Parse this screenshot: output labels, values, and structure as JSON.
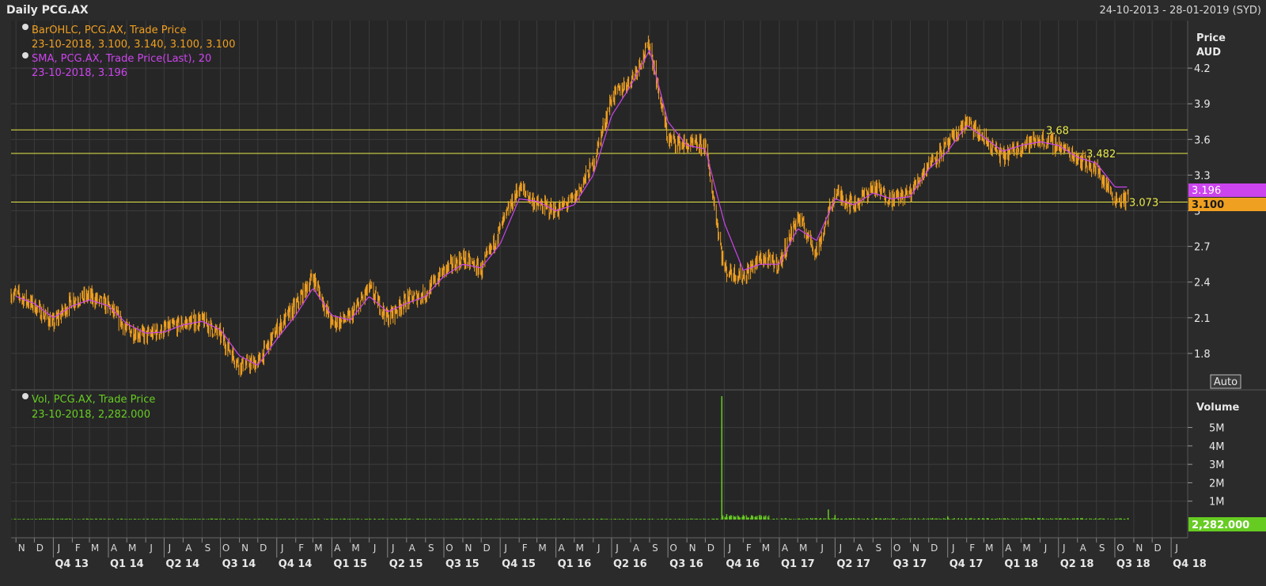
{
  "header": {
    "title": "Daily PCG.AX",
    "date_range": "24-10-2013 - 28-01-2019 (SYD)"
  },
  "price_panel": {
    "axis_title": "Price",
    "axis_unit": "AUD",
    "auto_label": "Auto",
    "legend": [
      {
        "icon": "info-icon",
        "line1": "BarOHLC, PCG.AX, Trade Price",
        "line2": "23-10-2018, 3.100, 3.140, 3.100, 3.100",
        "color": "#f0a020"
      },
      {
        "icon": "info-icon",
        "line1": "SMA, PCG.AX, Trade Price(Last),  20",
        "line2": "23-10-2018, 3.196",
        "color": "#cc44ee"
      }
    ],
    "last_price_tag": "3.100",
    "sma_tag": "3.196",
    "hlines": [
      {
        "value": 3.68,
        "label": "3.68"
      },
      {
        "value": 3.482,
        "label": "3.482"
      },
      {
        "value": 3.073,
        "label": "3.073"
      }
    ]
  },
  "volume_panel": {
    "axis_title": "Volume",
    "legend": [
      {
        "icon": "info-icon",
        "line1": "Vol, PCG.AX, Trade Price",
        "line2": "23-10-2018, 2,282.000",
        "color": "#66cc22"
      }
    ],
    "last_volume_tag": "2,282.000"
  },
  "x_axis": {
    "months": [
      "N",
      "D",
      "J",
      "F",
      "M",
      "A",
      "M",
      "J",
      "J",
      "A",
      "S",
      "O",
      "N",
      "D",
      "J",
      "F",
      "M",
      "A",
      "M",
      "J",
      "J",
      "A",
      "S",
      "O",
      "N",
      "D",
      "J",
      "F",
      "M",
      "A",
      "M",
      "J",
      "J",
      "A",
      "S",
      "O",
      "N",
      "D",
      "J",
      "F",
      "M",
      "A",
      "M",
      "J",
      "J",
      "A",
      "S",
      "O",
      "N",
      "D",
      "J",
      "F",
      "M",
      "A",
      "M",
      "J",
      "J",
      "A",
      "S",
      "O",
      "N",
      "D",
      "J"
    ],
    "quarters": [
      "Q4 13",
      "Q1 14",
      "Q2 14",
      "Q3 14",
      "Q4 14",
      "Q1 15",
      "Q2 15",
      "Q3 15",
      "Q4 15",
      "Q1 16",
      "Q2 16",
      "Q3 16",
      "Q4 16",
      "Q1 17",
      "Q2 17",
      "Q3 17",
      "Q4 17",
      "Q1 18",
      "Q2 18",
      "Q3 18",
      "Q4 18"
    ]
  },
  "colors": {
    "background": "#2b2b2b",
    "grid": "#3c3c3c",
    "ohlc": "#f0a020",
    "sma": "#cc44ee",
    "volume": "#66cc22",
    "hline": "#e8e84a",
    "last_tag_bg": "#f0a020",
    "sma_tag_bg": "#cc44ee",
    "vol_tag_bg": "#66cc22"
  },
  "chart_data": [
    {
      "type": "line",
      "title": "Daily PCG.AX",
      "ylabel": "Price AUD",
      "ylim": [
        1.5,
        4.6
      ],
      "y_ticks": [
        1.8,
        2.1,
        2.4,
        2.7,
        3,
        3.3,
        3.6,
        3.9,
        4.2
      ],
      "x_range": [
        "2013-10-24",
        "2019-01-28"
      ],
      "series": [
        {
          "name": "BarOHLC, PCG.AX, Trade Price",
          "style": "ohlc",
          "x": [
            "2013-11-01",
            "2013-12-01",
            "2014-01-01",
            "2014-02-01",
            "2014-03-01",
            "2014-04-01",
            "2014-05-01",
            "2014-06-01",
            "2014-07-01",
            "2014-08-01",
            "2014-09-01",
            "2014-10-01",
            "2014-11-01",
            "2014-12-01",
            "2015-01-01",
            "2015-02-01",
            "2015-03-01",
            "2015-04-01",
            "2015-05-01",
            "2015-06-01",
            "2015-07-01",
            "2015-08-01",
            "2015-09-01",
            "2015-10-01",
            "2015-11-01",
            "2015-12-01",
            "2016-01-01",
            "2016-02-01",
            "2016-03-01",
            "2016-04-01",
            "2016-05-01",
            "2016-06-01",
            "2016-07-01",
            "2016-08-01",
            "2016-09-01",
            "2016-10-01",
            "2016-11-01",
            "2016-12-01",
            "2017-01-01",
            "2017-02-01",
            "2017-03-01",
            "2017-04-01",
            "2017-05-01",
            "2017-06-01",
            "2017-07-01",
            "2017-08-01",
            "2017-09-01",
            "2017-10-01",
            "2017-11-01",
            "2017-12-01",
            "2018-01-01",
            "2018-02-01",
            "2018-03-01",
            "2018-04-01",
            "2018-05-01",
            "2018-06-01",
            "2018-07-01",
            "2018-08-01",
            "2018-09-01",
            "2018-10-01"
          ],
          "values": [
            2.3,
            2.2,
            2.05,
            2.25,
            2.28,
            2.2,
            2.0,
            1.95,
            2.0,
            2.05,
            2.08,
            1.95,
            1.7,
            1.72,
            2.0,
            2.2,
            2.45,
            2.05,
            2.1,
            2.35,
            2.1,
            2.25,
            2.3,
            2.5,
            2.6,
            2.5,
            2.85,
            3.2,
            3.05,
            3.0,
            3.1,
            3.4,
            3.95,
            4.1,
            4.4,
            3.6,
            3.55,
            3.55,
            2.5,
            2.45,
            2.6,
            2.55,
            2.95,
            2.65,
            3.15,
            3.05,
            3.2,
            3.1,
            3.15,
            3.4,
            3.55,
            3.75,
            3.6,
            3.45,
            3.55,
            3.6,
            3.55,
            3.45,
            3.35,
            3.1
          ]
        },
        {
          "name": "SMA, PCG.AX, Trade Price(Last),  20",
          "style": "line",
          "x": [
            "2013-11-01",
            "2013-12-01",
            "2014-01-01",
            "2014-02-01",
            "2014-03-01",
            "2014-04-01",
            "2014-05-01",
            "2014-06-01",
            "2014-07-01",
            "2014-08-01",
            "2014-09-01",
            "2014-10-01",
            "2014-11-01",
            "2014-12-01",
            "2015-01-01",
            "2015-02-01",
            "2015-03-01",
            "2015-04-01",
            "2015-05-01",
            "2015-06-01",
            "2015-07-01",
            "2015-08-01",
            "2015-09-01",
            "2015-10-01",
            "2015-11-01",
            "2015-12-01",
            "2016-01-01",
            "2016-02-01",
            "2016-03-01",
            "2016-04-01",
            "2016-05-01",
            "2016-06-01",
            "2016-07-01",
            "2016-08-01",
            "2016-09-01",
            "2016-10-01",
            "2016-11-01",
            "2016-12-01",
            "2017-01-01",
            "2017-02-01",
            "2017-03-01",
            "2017-04-01",
            "2017-05-01",
            "2017-06-01",
            "2017-07-01",
            "2017-08-01",
            "2017-09-01",
            "2017-10-01",
            "2017-11-01",
            "2017-12-01",
            "2018-01-01",
            "2018-02-01",
            "2018-03-01",
            "2018-04-01",
            "2018-05-01",
            "2018-06-01",
            "2018-07-01",
            "2018-08-01",
            "2018-09-01",
            "2018-10-01"
          ],
          "values": [
            2.28,
            2.22,
            2.1,
            2.2,
            2.25,
            2.2,
            2.05,
            1.97,
            1.98,
            2.04,
            2.07,
            2.0,
            1.78,
            1.7,
            1.92,
            2.12,
            2.35,
            2.12,
            2.08,
            2.28,
            2.15,
            2.22,
            2.28,
            2.45,
            2.55,
            2.52,
            2.72,
            3.1,
            3.08,
            3.0,
            3.05,
            3.3,
            3.8,
            4.05,
            4.35,
            3.75,
            3.55,
            3.52,
            2.9,
            2.5,
            2.55,
            2.55,
            2.85,
            2.75,
            3.1,
            3.05,
            3.15,
            3.1,
            3.12,
            3.35,
            3.5,
            3.72,
            3.62,
            3.5,
            3.55,
            3.58,
            3.55,
            3.45,
            3.4,
            3.2
          ]
        }
      ]
    },
    {
      "type": "bar",
      "title": "",
      "ylabel": "Volume",
      "ylim": [
        0,
        7000000
      ],
      "y_ticks": [
        1000000,
        2000000,
        3000000,
        4000000,
        5000000
      ],
      "y_tick_labels": [
        "1M",
        "2M",
        "3M",
        "4M",
        "5M"
      ],
      "series": [
        {
          "name": "Vol, PCG.AX, Trade Price",
          "x": [
            "2016-12-28",
            "2017-01-05",
            "2017-02-01",
            "2017-03-01",
            "2017-06-20",
            "2017-07-01",
            "2018-01-01"
          ],
          "values": [
            6700000,
            300000,
            250000,
            220000,
            550000,
            250000,
            180000
          ]
        }
      ]
    }
  ]
}
